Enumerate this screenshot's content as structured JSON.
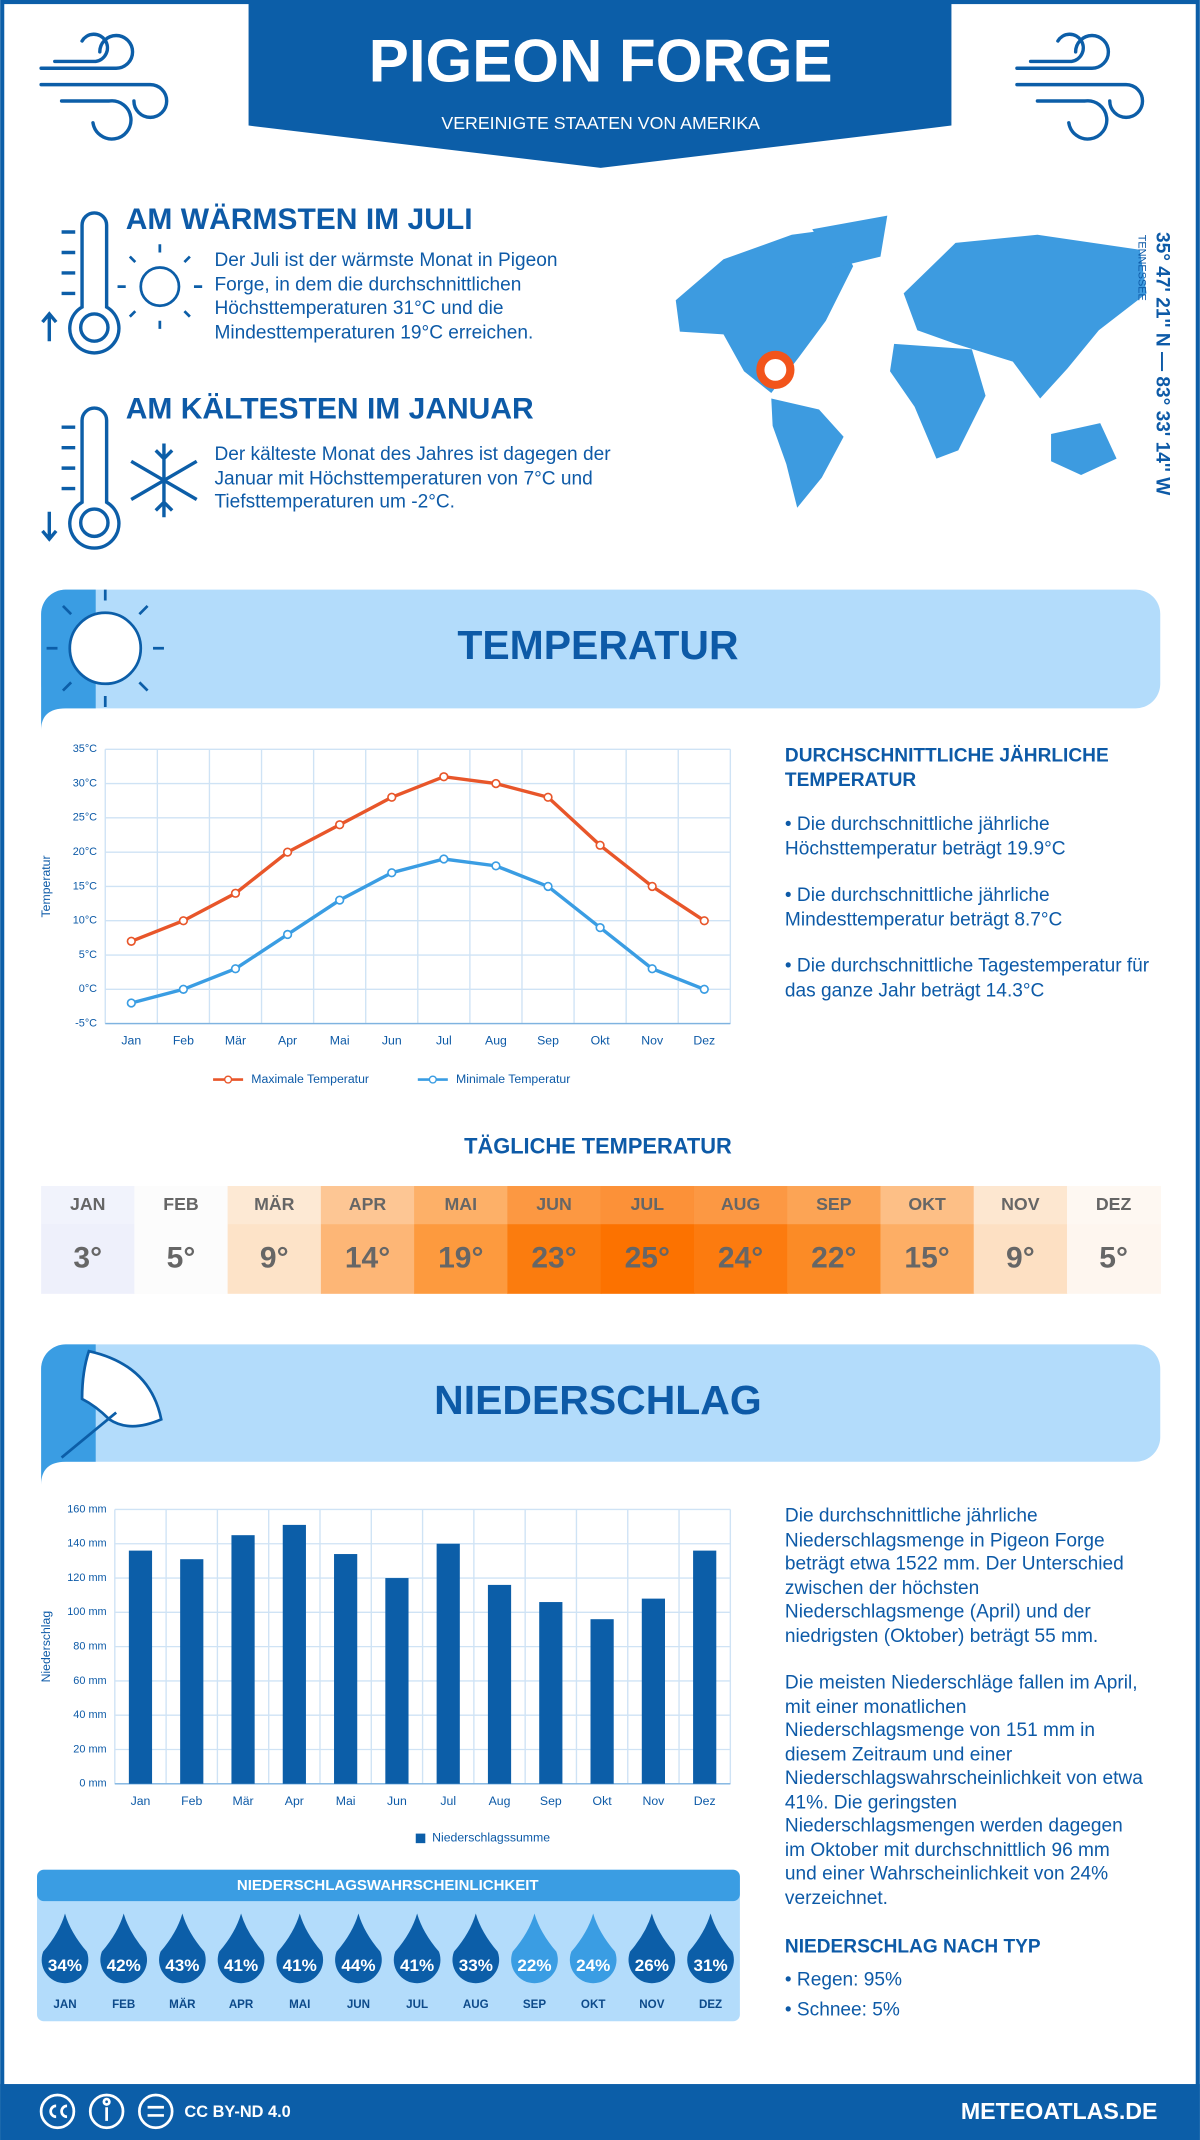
{
  "header": {
    "title": "PIGEON FORGE",
    "subtitle": "VEREINIGTE STAATEN VON AMERIKA"
  },
  "warmest": {
    "title": "AM WÄRMSTEN IM JULI",
    "text": "Der Juli ist der wärmste Monat in Pigeon Forge, in dem die durchschnittlichen Höchsttemperaturen 31°C und die Mindesttemperaturen 19°C erreichen."
  },
  "coldest": {
    "title": "AM KÄLTESTEN IM JANUAR",
    "text": "Der kälteste Monat des Jahres ist dagegen der Januar mit Höchsttemperaturen von 7°C und Tiefsttemperaturen um -2°C."
  },
  "location": {
    "coordinates": "35° 47' 21'' N — 83° 33' 14'' W",
    "region": "TENNESSEE"
  },
  "temperature_section": {
    "title": "TEMPERATUR"
  },
  "chart_data": [
    {
      "type": "line",
      "y_label": "Temperatur",
      "categories": [
        "Jan",
        "Feb",
        "Mär",
        "Apr",
        "Mai",
        "Jun",
        "Jul",
        "Aug",
        "Sep",
        "Okt",
        "Nov",
        "Dez"
      ],
      "series": [
        {
          "name": "Maximale Temperatur",
          "color": "#e8562a",
          "values": [
            7,
            10,
            14,
            20,
            24,
            28,
            31,
            30,
            28,
            21,
            15,
            10
          ]
        },
        {
          "name": "Minimale Temperatur",
          "color": "#3a9de3",
          "values": [
            -2,
            0,
            3,
            8,
            13,
            17,
            19,
            18,
            15,
            9,
            3,
            0
          ]
        }
      ],
      "ylim": [
        -5,
        35
      ],
      "yticks": [
        {
          "value": -5,
          "label": "-5°C"
        },
        {
          "value": 0,
          "label": "0°C"
        },
        {
          "value": 5,
          "label": "5°C"
        },
        {
          "value": 10,
          "label": "10°C"
        },
        {
          "value": 15,
          "label": "15°C"
        },
        {
          "value": 20,
          "label": "20°C"
        },
        {
          "value": 25,
          "label": "25°C"
        },
        {
          "value": 30,
          "label": "30°C"
        },
        {
          "value": 35,
          "label": "35°C"
        }
      ],
      "grid": true
    },
    {
      "type": "bar",
      "y_label": "Niederschlag",
      "categories": [
        "Jan",
        "Feb",
        "Mär",
        "Apr",
        "Mai",
        "Jun",
        "Jul",
        "Aug",
        "Sep",
        "Okt",
        "Nov",
        "Dez"
      ],
      "series": [
        {
          "name": "Niederschlagssumme",
          "color": "#0c5ea8",
          "values": [
            136,
            131,
            145,
            151,
            134,
            120,
            140,
            116,
            106,
            96,
            108,
            136
          ]
        }
      ],
      "ylim": [
        0,
        160
      ],
      "yticks": [
        {
          "value": 0,
          "label": "0 mm"
        },
        {
          "value": 20,
          "label": "20 mm"
        },
        {
          "value": 40,
          "label": "40 mm"
        },
        {
          "value": 60,
          "label": "60 mm"
        },
        {
          "value": 80,
          "label": "80 mm"
        },
        {
          "value": 100,
          "label": "100 mm"
        },
        {
          "value": 120,
          "label": "120 mm"
        },
        {
          "value": 140,
          "label": "140 mm"
        },
        {
          "value": 160,
          "label": "160 mm"
        }
      ],
      "grid": true
    }
  ],
  "annual_temperature": {
    "title": "DURCHSCHNITTLICHE JÄHRLICHE TEMPERATUR",
    "items": [
      "• Die durchschnittliche jährliche Höchsttemperatur beträgt 19.9°C",
      "• Die durchschnittliche jährliche Mindesttemperatur beträgt 8.7°C",
      "• Die durchschnittliche Tagestemperatur für das ganze Jahr beträgt 14.3°C"
    ]
  },
  "daily_temperature": {
    "title": "TÄGLICHE TEMPERATUR",
    "months": [
      "JAN",
      "FEB",
      "MÄR",
      "APR",
      "MAI",
      "JUN",
      "JUL",
      "AUG",
      "SEP",
      "OKT",
      "NOV",
      "DEZ"
    ],
    "values": [
      "3°",
      "5°",
      "9°",
      "14°",
      "19°",
      "23°",
      "25°",
      "24°",
      "22°",
      "15°",
      "9°",
      "5°"
    ],
    "colors": [
      "#eef0fb",
      "#fcfcfc",
      "#fde3c8",
      "#fdb676",
      "#fd9a3e",
      "#fb7c0e",
      "#fc7200",
      "#fc7b0f",
      "#fb8b26",
      "#fdae65",
      "#fde0c3",
      "#fef6ef"
    ]
  },
  "precipitation_section": {
    "title": "NIEDERSCHLAG"
  },
  "precipitation_text": [
    "Die durchschnittliche jährliche Niederschlagsmenge in Pigeon Forge beträgt etwa 1522 mm. Der Unterschied zwischen der höchsten Niederschlagsmenge (April) und der niedrigsten (Oktober) beträgt 55 mm.",
    "Die meisten Niederschläge fallen im April, mit einer monatlichen Niederschlagsmenge von 151 mm in diesem Zeitraum und einer Niederschlagswahrscheinlichkeit von etwa 41%. Die geringsten Niederschlagsmengen werden dagegen im Oktober mit durchschnittlich 96 mm und einer Wahrscheinlichkeit von 24% verzeichnet."
  ],
  "precipitation_probability": {
    "title": "NIEDERSCHLAGSWAHRSCHEINLICHKEIT",
    "months": [
      "JAN",
      "FEB",
      "MÄR",
      "APR",
      "MAI",
      "JUN",
      "JUL",
      "AUG",
      "SEP",
      "OKT",
      "NOV",
      "DEZ"
    ],
    "values": [
      "34%",
      "42%",
      "43%",
      "41%",
      "41%",
      "44%",
      "41%",
      "33%",
      "22%",
      "24%",
      "26%",
      "31%"
    ],
    "colors": [
      "#0c5ea8",
      "#0c5ea8",
      "#0c5ea8",
      "#0c5ea8",
      "#0c5ea8",
      "#0c5ea8",
      "#0c5ea8",
      "#0c5ea8",
      "#3a9de3",
      "#3a9de3",
      "#0c5ea8",
      "#0c5ea8"
    ]
  },
  "precipitation_type": {
    "title": "NIEDERSCHLAG NACH TYP",
    "items": [
      "• Regen: 95%",
      "• Schnee: 5%"
    ]
  },
  "footer": {
    "license": "CC BY-ND 4.0",
    "site": "METEOATLAS.DE"
  }
}
